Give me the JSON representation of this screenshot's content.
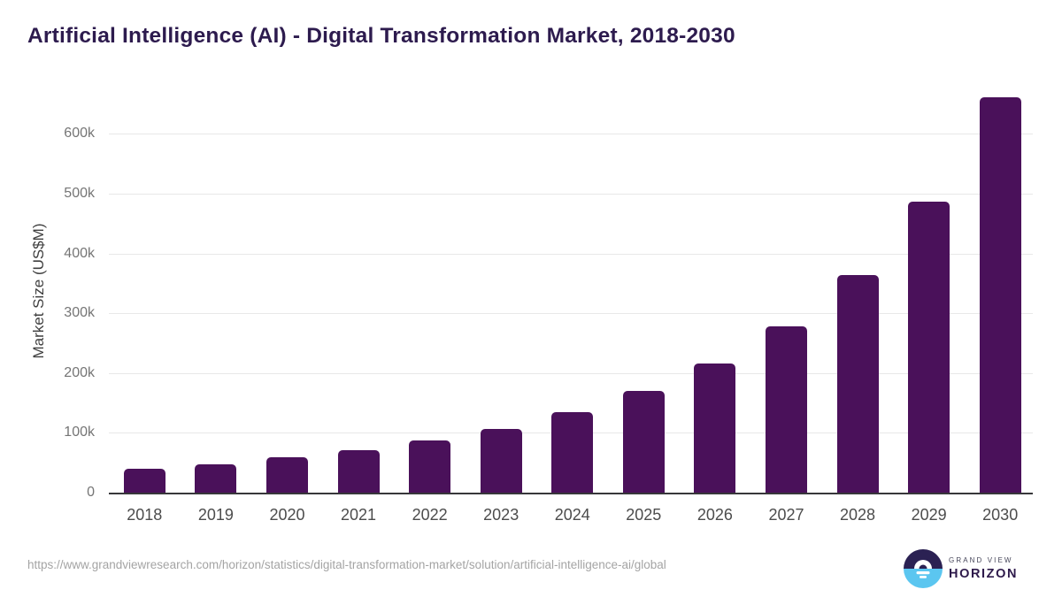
{
  "chart_data": {
    "type": "bar",
    "title": "Artificial Intelligence (AI) - Digital Transformation Market, 2018-2030",
    "xlabel": "",
    "ylabel": "Market Size (US$M)",
    "categories": [
      "2018",
      "2019",
      "2020",
      "2021",
      "2022",
      "2023",
      "2024",
      "2025",
      "2026",
      "2027",
      "2028",
      "2029",
      "2030"
    ],
    "values": [
      40000,
      48000,
      59000,
      71500,
      87000,
      107250,
      134000,
      170000,
      215500,
      278500,
      364500,
      486500,
      661740
    ],
    "unit": "US$M",
    "ylim": [
      0,
      676000
    ],
    "yticks": [
      0,
      100000,
      200000,
      300000,
      400000,
      500000,
      600000
    ],
    "ytick_labels": [
      "0",
      "100k",
      "200k",
      "300k",
      "400k",
      "500k",
      "600k"
    ],
    "grid": "horizontal",
    "legend": "none",
    "bar_color": "#4a115a"
  },
  "footer": {
    "source_url": "https://www.grandviewresearch.com/horizon/statistics/digital-transformation-market/solution/artificial-intelligence-ai/global",
    "logo": {
      "brand_top": "GRAND VIEW",
      "brand_bottom": "HORIZON"
    }
  },
  "colors": {
    "background": "#ffffff",
    "title": "#2d1b4e",
    "bar": "#4a115a",
    "gridline": "#e8e8e8",
    "axis_line": "#37373a",
    "ytick_text": "#757575",
    "xtick_text": "#4c4c4c",
    "ylabel_text": "#3f3f3f",
    "source_text": "#a4a4a4",
    "logo_circle_top": "#2b2153",
    "logo_circle_bottom": "#5bc6f0",
    "logo_grand_view": "#46465a",
    "logo_horizon": "#2e1a4b"
  }
}
